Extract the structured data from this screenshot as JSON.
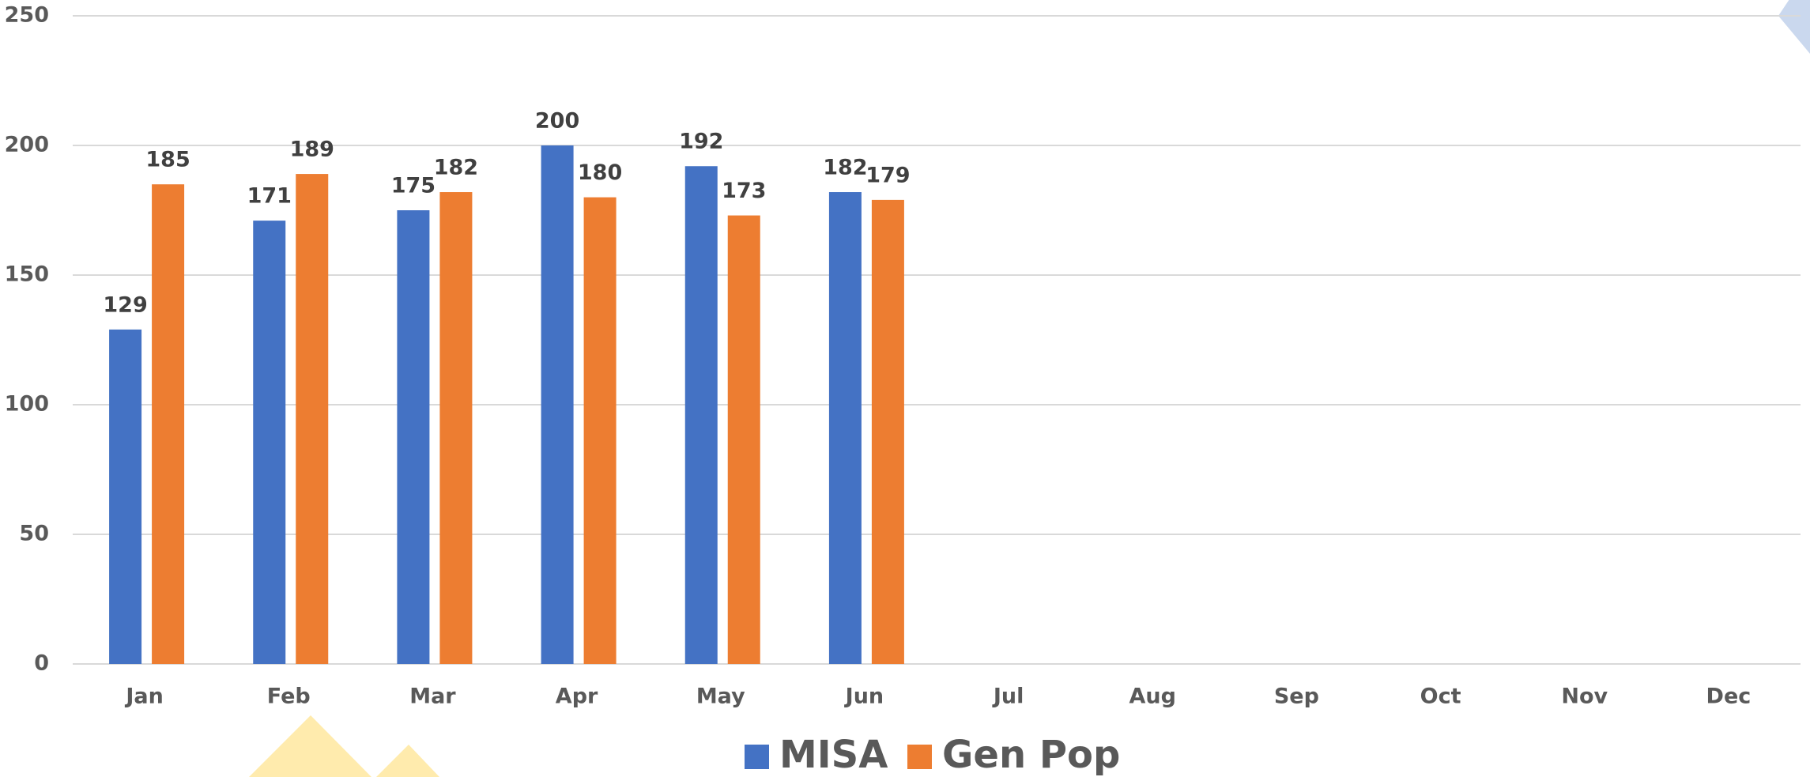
{
  "chart_data": {
    "type": "bar",
    "categories": [
      "Jan",
      "Feb",
      "Mar",
      "Apr",
      "May",
      "Jun",
      "Jul",
      "Aug",
      "Sep",
      "Oct",
      "Nov",
      "Dec"
    ],
    "series": [
      {
        "name": "MISA",
        "color": "#4472c4",
        "values": [
          129,
          171,
          175,
          200,
          192,
          182,
          null,
          null,
          null,
          null,
          null,
          null
        ]
      },
      {
        "name": "Gen Pop",
        "color": "#ed7d31",
        "values": [
          185,
          189,
          182,
          180,
          173,
          179,
          null,
          null,
          null,
          null,
          null,
          null
        ]
      }
    ],
    "ylim": [
      0,
      250
    ],
    "yticks": [
      0,
      50,
      100,
      150,
      200,
      250
    ],
    "grid": true,
    "legend": "bottom"
  }
}
